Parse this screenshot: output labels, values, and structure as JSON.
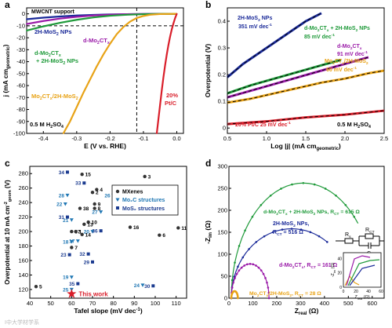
{
  "panel_letters": [
    "a",
    "b",
    "c",
    "d"
  ],
  "colors": {
    "blue": "#1a2a99",
    "green": "#1f9a3a",
    "purple": "#9a1aa8",
    "orange": "#e8a317",
    "red": "#d91e2a",
    "black": "#000000",
    "gray": "#8a8a8a",
    "mxene_blue": "#1f77b4",
    "mos2_navy": "#1a3a8f"
  },
  "chart_data": [
    {
      "panel": "a",
      "type": "line",
      "xlabel": "E (V vs. RHE)",
      "ylabel": "j (mA cm",
      "ylabel_sub": "geometric",
      "ylabel_end": ")",
      "xlim": [
        -0.45,
        0.02
      ],
      "ylim": [
        -100,
        5
      ],
      "xticks": [
        "-0.4",
        "-0.3",
        "-0.2",
        "-0.1",
        "0.0"
      ],
      "xtick_values": [
        -0.4,
        -0.3,
        -0.2,
        -0.1,
        0.0
      ],
      "yticks": [
        "0",
        "-10",
        "-20",
        "-30",
        "-40",
        "-50",
        "-60",
        "-70",
        "-80",
        "-90",
        "-100"
      ],
      "ytick_values": [
        0,
        -10,
        -20,
        -30,
        -40,
        -50,
        -60,
        -70,
        -80,
        -90,
        -100
      ],
      "vline": -0.12,
      "hline": -10,
      "annotations": {
        "support": "MWCNT support",
        "electrolyte": "0.5 M H",
        "electrolyte_sub": "2",
        "electrolyte_end": "SO",
        "electrolyte_sub2": "4"
      },
      "series": [
        {
          "name": "2H-MoS",
          "name_sub": "2",
          "name_end": " NPs",
          "color": "#1a2a99",
          "x": [
            -0.45,
            -0.4,
            -0.35,
            -0.3,
            -0.25,
            -0.2,
            -0.15,
            -0.1,
            -0.05,
            0.0
          ],
          "y": [
            -4.5,
            -3.2,
            -2.2,
            -1.4,
            -0.9,
            -0.5,
            -0.3,
            -0.15,
            -0.05,
            0
          ]
        },
        {
          "name": "d-Mo",
          "name_sub": "2",
          "name_end": "CT",
          "name_sub2": "x",
          "color": "#9a1aa8",
          "x": [
            -0.45,
            -0.4,
            -0.35,
            -0.3,
            -0.25,
            -0.2,
            -0.15,
            -0.1,
            -0.05,
            0.0
          ],
          "y": [
            -8.5,
            -6.0,
            -4.0,
            -2.5,
            -1.4,
            -0.7,
            -0.35,
            -0.15,
            -0.05,
            0
          ]
        },
        {
          "name": "d-Mo",
          "name_sub": "2",
          "name_end": "CT",
          "name_sub2": "x",
          "name_line2": "+ 2H-MoS",
          "name_line2_sub": "2",
          "name_line2_end": " NPs",
          "color": "#1f9a3a",
          "x": [
            -0.45,
            -0.4,
            -0.35,
            -0.3,
            -0.25,
            -0.2,
            -0.15,
            -0.1,
            -0.05,
            0.0
          ],
          "y": [
            -14,
            -10.5,
            -7.5,
            -5.0,
            -3.0,
            -1.6,
            -0.8,
            -0.3,
            -0.1,
            0
          ]
        },
        {
          "name": "Mo",
          "name_sub": "2",
          "name_end": "CT",
          "name_sub2": "x",
          "name_line2": "/2H-MoS",
          "name_line2_sub": "2",
          "color": "#e8a317",
          "x": [
            -0.34,
            -0.32,
            -0.3,
            -0.28,
            -0.26,
            -0.24,
            -0.22,
            -0.2,
            -0.18,
            -0.16,
            -0.14,
            -0.12,
            -0.1,
            -0.08,
            -0.05,
            0.0
          ],
          "y": [
            -100,
            -90,
            -78,
            -66,
            -55,
            -44,
            -34,
            -25,
            -17,
            -11,
            -6.5,
            -3.5,
            -1.8,
            -0.8,
            -0.2,
            0
          ]
        },
        {
          "name": "20%",
          "name_line2": "Pt/C",
          "color": "#d91e2a",
          "x": [
            -0.06,
            -0.055,
            -0.05,
            -0.045,
            -0.04,
            -0.035,
            -0.03,
            -0.025,
            -0.02,
            -0.015,
            -0.01,
            -0.005,
            0.0
          ],
          "y": [
            -100,
            -88,
            -76,
            -64,
            -53,
            -43,
            -34,
            -26,
            -19,
            -13,
            -8,
            -3.5,
            0
          ]
        }
      ]
    },
    {
      "panel": "b",
      "type": "line",
      "xlabel": "Log |j| (mA cm",
      "xlabel_sub": "geometric",
      "xlabel_end": ")",
      "ylabel": "Overpotential (V)",
      "xlim": [
        0.5,
        2.5
      ],
      "ylim": [
        -0.02,
        0.45
      ],
      "xticks": [
        "0.5",
        "1.0",
        "1.5",
        "2.0",
        "2.5"
      ],
      "xtick_values": [
        0.5,
        1.0,
        1.5,
        2.0,
        2.5
      ],
      "yticks": [
        "0",
        "0.1",
        "0.2",
        "0.3",
        "0.4"
      ],
      "ytick_values": [
        0,
        0.1,
        0.2,
        0.3,
        0.4
      ],
      "annotations": {
        "electrolyte": "0.5 M H",
        "electrolyte_sub": "2",
        "electrolyte_end": "SO",
        "electrolyte_sub2": "4"
      },
      "series": [
        {
          "name": "2H-MoS",
          "name_sub": "2",
          "name_end": " NPs",
          "slope_label": "351 mV dec",
          "slope_sup": "-1",
          "color": "#1a2a99",
          "x": [
            0.5,
            0.7,
            0.9,
            1.1,
            1.3,
            1.5,
            1.7
          ],
          "y": [
            0.19,
            0.24,
            0.28,
            0.32,
            0.36,
            0.4,
            0.43
          ]
        },
        {
          "name": "d-Mo",
          "name_sub": "2",
          "name_end": "CT",
          "name_sub2": "x",
          "name_tail": " + 2H-MoS",
          "name_tail_sub": "2",
          "name_tail_end": " NPs",
          "slope_label": "85 mV dec",
          "slope_sup": "-1",
          "color": "#1f9a3a",
          "x": [
            0.5,
            0.8,
            1.1,
            1.4,
            1.7,
            1.95
          ],
          "y": [
            0.13,
            0.16,
            0.185,
            0.21,
            0.235,
            0.255
          ]
        },
        {
          "name": "d-Mo",
          "name_sub": "2",
          "name_end": "CT",
          "name_sub2": "x",
          "slope_label": "91 mV dec",
          "slope_sup": "-1",
          "color": "#9a1aa8",
          "x": [
            0.5,
            0.8,
            1.1,
            1.4,
            1.7,
            2.0,
            2.3
          ],
          "y": [
            0.115,
            0.14,
            0.165,
            0.19,
            0.215,
            0.24,
            0.265
          ]
        },
        {
          "name": "Mo",
          "name_sub": "2",
          "name_end": "CT",
          "name_sub2": "x",
          "name_tail": "/2H-MoS",
          "name_tail_sub": "2",
          "slope_label": "60 mV dec",
          "slope_sup": "-1",
          "color": "#e8a317",
          "x": [
            0.5,
            0.8,
            1.1,
            1.4,
            1.7,
            2.0,
            2.3,
            2.5
          ],
          "y": [
            0.095,
            0.11,
            0.13,
            0.15,
            0.17,
            0.185,
            0.205,
            0.215
          ]
        },
        {
          "name": "20% Pt/C 25 mV dec",
          "name_sup": "-1",
          "color": "#d91e2a",
          "x": [
            0.5,
            1.0,
            1.5,
            2.0,
            2.5
          ],
          "y": [
            0.015,
            0.025,
            0.04,
            0.05,
            0.065
          ]
        }
      ]
    },
    {
      "panel": "c",
      "type": "scatter",
      "xlabel": "Tafel slope (mV dec",
      "xlabel_sup": "-1",
      "xlabel_end": ")",
      "ylabel": "Overpotential at 10 mA cm",
      "ylabel_sup": "-2",
      "ylabel_end": "geom",
      "ylabel_tail": " (V)",
      "xlim": [
        40,
        115
      ],
      "ylim": [
        108,
        290
      ],
      "xticks": [
        "40",
        "50",
        "60",
        "70",
        "80",
        "90",
        "100",
        "110"
      ],
      "xtick_values": [
        40,
        50,
        60,
        70,
        80,
        90,
        100,
        110
      ],
      "yticks": [
        "120",
        "140",
        "160",
        "180",
        "200",
        "220",
        "240",
        "260",
        "280"
      ],
      "ytick_values": [
        120,
        140,
        160,
        180,
        200,
        220,
        240,
        260,
        280
      ],
      "legend": {
        "placement": "top-right",
        "items": [
          "MXenes",
          "Mo₂C structures",
          "MoS₂ structures"
        ]
      },
      "this_work": {
        "label": "This work",
        "x": 60,
        "y": 114
      },
      "series": [
        {
          "name": "MXenes",
          "marker": "circle",
          "color": "#000000",
          "points": [
            {
              "id": "15",
              "x": 65,
              "y": 279
            },
            {
              "id": "3",
              "x": 95,
              "y": 276
            },
            {
              "id": "4",
              "x": 72,
              "y": 258
            },
            {
              "id": "2",
              "x": 70,
              "y": 254
            },
            {
              "id": "9",
              "x": 71,
              "y": 238
            },
            {
              "id": "38",
              "x": 64,
              "y": 232
            },
            {
              "id": "8",
              "x": 71,
              "y": 232
            },
            {
              "id": "12",
              "x": 90,
              "y": 230
            },
            {
              "id": "10",
              "x": 68,
              "y": 213
            },
            {
              "id": "13",
              "x": 66,
              "y": 210
            },
            {
              "id": "37",
              "x": 60,
              "y": 200
            },
            {
              "id": "1",
              "x": 62,
              "y": 200
            },
            {
              "id": "14",
              "x": 65,
              "y": 196
            },
            {
              "id": "16",
              "x": 88,
              "y": 206
            },
            {
              "id": "6",
              "x": 102,
              "y": 195
            },
            {
              "id": "11",
              "x": 111,
              "y": 205
            },
            {
              "id": "7",
              "x": 60,
              "y": 178
            },
            {
              "id": "5",
              "x": 43,
              "y": 124
            }
          ]
        },
        {
          "name": "Mo₂C structures",
          "marker": "triangle",
          "color": "#1f77b4",
          "points": [
            {
              "id": "28",
              "x": 58,
              "y": 250
            },
            {
              "id": "26",
              "x": 80,
              "y": 250
            },
            {
              "id": "22",
              "x": 57,
              "y": 238
            },
            {
              "id": "27",
              "x": 74,
              "y": 227
            },
            {
              "id": "21",
              "x": 60,
              "y": 216
            },
            {
              "id": "18",
              "x": 60,
              "y": 186
            },
            {
              "id": "17",
              "x": 63,
              "y": 187
            },
            {
              "id": "19",
              "x": 60,
              "y": 137
            },
            {
              "id": "25",
              "x": 60,
              "y": 120
            },
            {
              "id": "24",
              "x": 94,
              "y": 126
            },
            {
              "id": "20",
              "x": 70,
              "y": 200
            }
          ]
        },
        {
          "name": "MoS₂ structures",
          "marker": "square",
          "color": "#1a3a8f",
          "points": [
            {
              "id": "34",
              "x": 58,
              "y": 282
            },
            {
              "id": "33",
              "x": 66,
              "y": 267
            },
            {
              "id": "31",
              "x": 58,
              "y": 220
            },
            {
              "id": "36",
              "x": 74,
              "y": 201
            },
            {
              "id": "23",
              "x": 59,
              "y": 168
            },
            {
              "id": "32",
              "x": 68,
              "y": 169
            },
            {
              "id": "29",
              "x": 70,
              "y": 158
            },
            {
              "id": "35",
              "x": 63,
              "y": 128
            },
            {
              "id": "30",
              "x": 99,
              "y": 125
            }
          ]
        }
      ]
    },
    {
      "panel": "d",
      "type": "scatter",
      "xlabel": "Z",
      "xlabel_sub": "real",
      "xlabel_end": " (Ω)",
      "ylabel": "-Z",
      "ylabel_sub": "im",
      "ylabel_end": " (Ω)",
      "xlim": [
        0,
        650
      ],
      "ylim": [
        0,
        300
      ],
      "xticks": [
        "0",
        "100",
        "200",
        "300",
        "400",
        "500",
        "600"
      ],
      "xtick_values": [
        0,
        100,
        200,
        300,
        400,
        500,
        600
      ],
      "yticks": [
        "0",
        "50",
        "100",
        "150",
        "200",
        "250",
        "300"
      ],
      "ytick_values": [
        0,
        50,
        100,
        150,
        200,
        250,
        300
      ],
      "circuit": {
        "rs": "R",
        "rs_sub": "s",
        "rct": "R",
        "rct_sub": "CT",
        "cdl": "C",
        "cdl_sub": "dl"
      },
      "inset": {
        "xlabel": "Z",
        "xlabel_sub": "real",
        "xlabel_end": " (Ω)",
        "ylabel": "-Z",
        "ylabel_sub": "im",
        "ylabel_end": " (Ω)",
        "xticks": [
          "0",
          "20",
          "40",
          "60"
        ],
        "yticks": [
          "0",
          "20",
          "40"
        ]
      },
      "series": [
        {
          "name": "d-Mo",
          "name_sub": "2",
          "name_end": "CT",
          "name_sub2": "x",
          "name_tail": " + 2H-MoS",
          "name_tail_sub": "2",
          "name_tail_end": " NPs, R",
          "name_tail_sub2": "CT",
          "name_tail_end2": " = 615 Ω",
          "color": "#1f9a3a",
          "rct": 615
        },
        {
          "name": "2H-MoS",
          "name_sub": "2",
          "name_end": " NPs,",
          "name_line2": "R",
          "name_line2_sub": "CT",
          "name_line2_end": " = 516 Ω",
          "color": "#1a2a99",
          "rct": 516
        },
        {
          "name": "d-Mo",
          "name_sub": "2",
          "name_end": "CT",
          "name_sub2": "x",
          "name_tail": ", R",
          "name_tail_sub": "CT",
          "name_tail_end": " = 161 Ω",
          "color": "#9a1aa8",
          "rct": 161
        },
        {
          "name": "Mo",
          "name_sub": "2",
          "name_end": "CT",
          "name_sub2": "x",
          "name_tail": "/2H-MoS",
          "name_tail_sub": "2",
          "name_tail_end": ", R",
          "name_tail_sub2": "CT",
          "name_tail_end2": " = 28 Ω",
          "color": "#e8a317",
          "rct": 28
        }
      ]
    }
  ],
  "watermark": "Ι中大学材学系"
}
